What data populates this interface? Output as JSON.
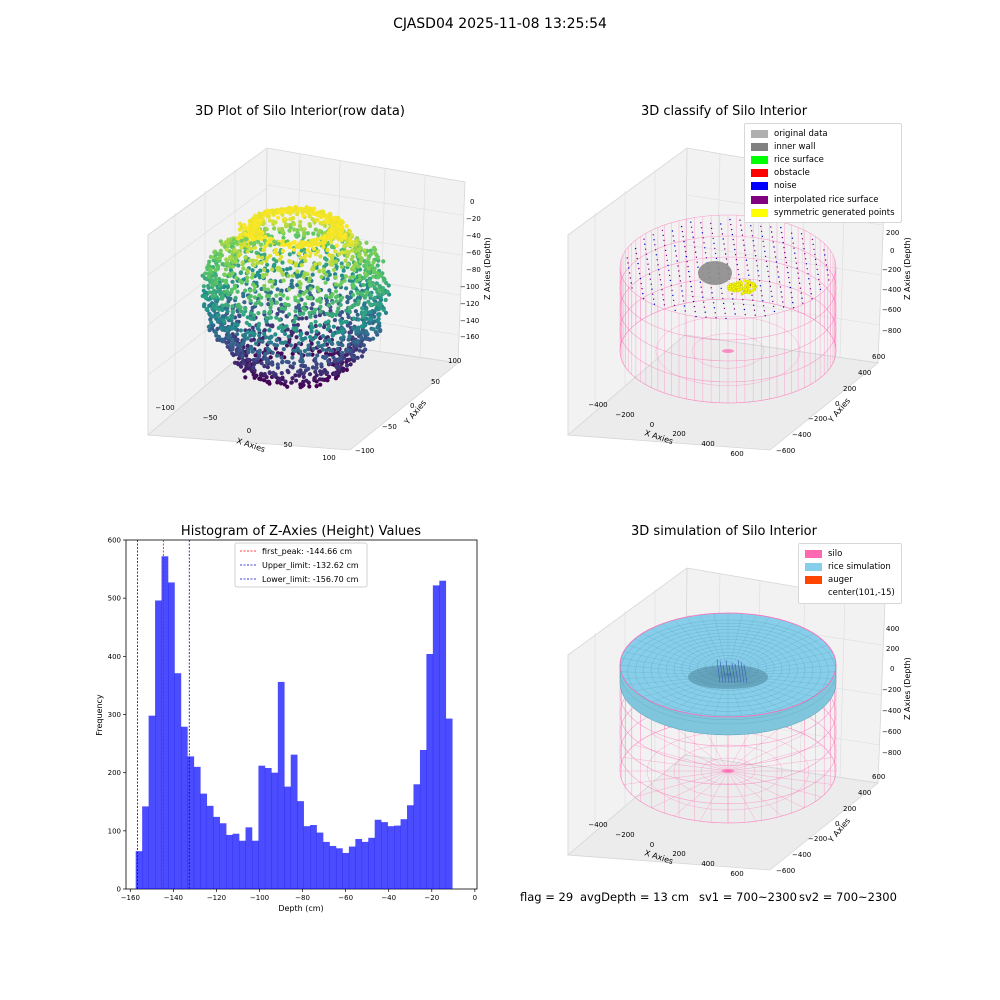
{
  "suptitle": "CJASD04 2025-11-08 13:25:54",
  "panels": {
    "raw": {
      "title": "3D Plot of Silo Interior(row data)",
      "xlabel": "X Axies",
      "ylabel": "Y Axies",
      "zlabel": "Z Axies (Depth)",
      "xticks": [
        "−100",
        "−50",
        "0",
        "50",
        "100"
      ],
      "yticks": [
        "−100",
        "−50",
        "0",
        "50",
        "100"
      ],
      "zticks": [
        "0",
        "−20",
        "−40",
        "−60",
        "−80",
        "−100",
        "−120",
        "−140",
        "−160"
      ]
    },
    "classify": {
      "title": "3D classify of Silo Interior",
      "xlabel": "X Axies",
      "ylabel": "Y Axies",
      "zlabel": "Z Axies (Depth)",
      "xticks": [
        "−400",
        "−200",
        "0",
        "200",
        "400",
        "600"
      ],
      "yticks": [
        "600",
        "400",
        "200",
        "0",
        "−200",
        "−400",
        "−600"
      ],
      "zticks": [
        "400",
        "200",
        "0",
        "−200",
        "−400",
        "−600",
        "−800"
      ],
      "legend": [
        {
          "label": "original data",
          "color": "#b0b0b0"
        },
        {
          "label": "inner wall",
          "color": "#808080"
        },
        {
          "label": "rice surface",
          "color": "#00ff00"
        },
        {
          "label": "obstacle",
          "color": "#ff0000"
        },
        {
          "label": "noise",
          "color": "#0000ff"
        },
        {
          "label": "interpolated rice surface",
          "color": "#800080"
        },
        {
          "label": "symmetric generated points",
          "color": "#ffff00"
        }
      ]
    },
    "simulation": {
      "title": "3D simulation of Silo Interior",
      "xlabel": "X Axies",
      "ylabel": "Y Axies",
      "zlabel": "Z Axies (Depth)",
      "xticks": [
        "−400",
        "−200",
        "0",
        "200",
        "400",
        "600"
      ],
      "yticks": [
        "600",
        "400",
        "200",
        "0",
        "−200",
        "−400",
        "−600"
      ],
      "zticks": [
        "400",
        "200",
        "0",
        "−200",
        "−400",
        "−600",
        "−800"
      ],
      "legend": [
        {
          "label": "silo",
          "color": "#ff69b4"
        },
        {
          "label": "rice simulation",
          "color": "#87ceeb"
        },
        {
          "label": "auger",
          "color": "#ff4500"
        },
        {
          "label": "center(101,-15)",
          "color": "#ffffff"
        }
      ]
    }
  },
  "footer": {
    "flag": "flag = 29",
    "avg": "avgDepth = 13 cm",
    "sv1": "sv1 = 700~2300",
    "sv2": "sv2 = 700~2300"
  },
  "chart_data": [
    {
      "type": "bar",
      "title": "Histogram of Z-Axies (Height) Values",
      "xlabel": "Depth (cm)",
      "ylabel": "Frequency",
      "xlim": [
        -162,
        1
      ],
      "ylim": [
        0,
        600
      ],
      "xticks": [
        -160,
        -140,
        -120,
        -100,
        -80,
        -60,
        -40,
        -20,
        0
      ],
      "yticks": [
        0,
        100,
        200,
        300,
        400,
        500,
        600
      ],
      "bar_color": "#0000ff",
      "bin_start": -157.5,
      "bin_width": 3.0,
      "values": [
        65,
        142,
        298,
        496,
        572,
        527,
        371,
        279,
        228,
        210,
        164,
        143,
        124,
        113,
        93,
        95,
        83,
        106,
        83,
        212,
        208,
        200,
        356,
        176,
        231,
        151,
        108,
        110,
        97,
        81,
        74,
        70,
        62,
        73,
        86,
        81,
        88,
        119,
        115,
        108,
        109,
        120,
        144,
        180,
        239,
        404,
        522,
        530,
        293
      ],
      "lines": [
        {
          "label": "first_peak: -144.66 cm",
          "x": -144.66,
          "color": "#ff0000"
        },
        {
          "label": "Upper_limit: -132.62 cm",
          "x": -132.62,
          "color": "#0000cc"
        },
        {
          "label": "Lower_limit: -156.70 cm",
          "x": -156.7,
          "color": "#0000cc"
        }
      ]
    }
  ]
}
